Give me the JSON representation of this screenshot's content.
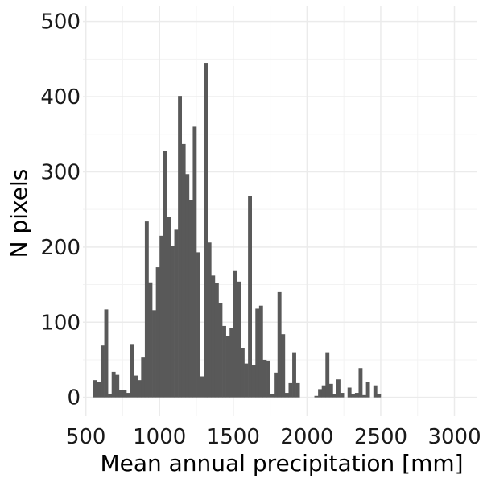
{
  "chart_data": {
    "type": "bar",
    "xlabel": "Mean annual precipitation [mm]",
    "ylabel": "N pixels",
    "xlim": [
      480,
      3150
    ],
    "ylim": [
      -25,
      520
    ],
    "xticks": [
      500,
      1000,
      1500,
      2000,
      2500,
      3000
    ],
    "yticks": [
      0,
      100,
      200,
      300,
      400,
      500
    ],
    "bin_start": 550,
    "bin_width": 25,
    "values": [
      23,
      20,
      69,
      117,
      5,
      34,
      30,
      10,
      10,
      6,
      71,
      29,
      23,
      53,
      234,
      153,
      116,
      173,
      215,
      328,
      240,
      202,
      223,
      401,
      337,
      297,
      262,
      360,
      193,
      28,
      445,
      206,
      162,
      152,
      125,
      95,
      82,
      92,
      168,
      154,
      66,
      45,
      268,
      43,
      118,
      122,
      50,
      49,
      5,
      33,
      140,
      84,
      6,
      19,
      60,
      19,
      0,
      0,
      0,
      0,
      2,
      11,
      16,
      60,
      18,
      4,
      24,
      6,
      0,
      13,
      5,
      6,
      39,
      3,
      20,
      0,
      16,
      5
    ],
    "grid": true,
    "legend": "none",
    "colors": {
      "bar": "#595959",
      "grid_major": "#ebebeb",
      "grid_minor": "#f3f3f3"
    }
  }
}
